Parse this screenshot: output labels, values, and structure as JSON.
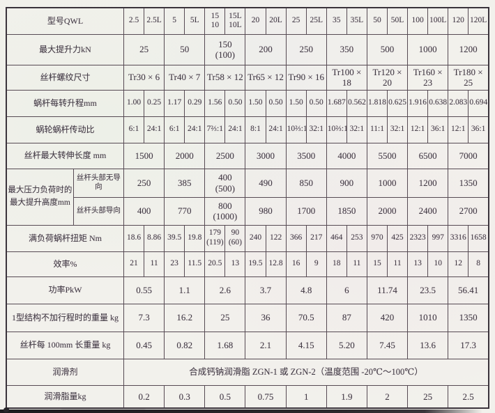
{
  "page": {
    "paper_color": "#f2f1ec",
    "line_color": "#564a53",
    "text_color": "#3f3a42",
    "scanner_bar_color": "#1d1b1e"
  },
  "table": {
    "rows": [
      {
        "id": "model",
        "label": "型号QWL",
        "span": 1,
        "cells": [
          "2.5",
          "2.5L",
          "5",
          "5L",
          "15\n10",
          "15L\n10L",
          "20",
          "20L",
          "25",
          "25L",
          "35",
          "35L",
          "50",
          "50L",
          "100",
          "100L",
          "120",
          "120L"
        ]
      },
      {
        "id": "max_lift_force_kN",
        "label": "最大提升力kN",
        "span": 2,
        "cells": [
          "25",
          "50",
          "150\n(100)",
          "200",
          "250",
          "350",
          "500",
          "1000",
          "1200"
        ]
      },
      {
        "id": "screw_thread_size",
        "label": "丝杆螺纹尺寸",
        "span": 2,
        "cells": [
          "Tr30 × 6",
          "Tr40 × 7",
          "Tr58 × 12",
          "Tr65 × 12",
          "Tr90 × 16",
          "Tr100 × 18",
          "Tr120 × 20",
          "Tr160 × 23",
          "Tr180 × 25"
        ]
      },
      {
        "id": "lift_per_rev_mm",
        "label": "蜗杆每转升程mm",
        "span": 1,
        "cells": [
          "1.00",
          "0.25",
          "1.17",
          "0.29",
          "1.56",
          "0.50",
          "1.50",
          "0.50",
          "1.50",
          "0.50",
          "1.687",
          "0.562",
          "1.818",
          "0.625",
          "1.916",
          "0.638",
          "2.083",
          "0.694"
        ]
      },
      {
        "id": "worm_gear_ratio",
        "label": "蜗轮蜗杆传动比",
        "span": 1,
        "cells": [
          "6:1",
          "24:1",
          "6:1",
          "24:1",
          "7⅔:1",
          "24:1",
          "8:1",
          "24:1",
          "10⅔:1",
          "32:1",
          "10⅔:1",
          "32:1",
          "11:1",
          "32:1",
          "12:1",
          "36:1",
          "12:1",
          "36:1"
        ]
      },
      {
        "id": "max_screw_extension_mm",
        "label": "丝杆最大转伸长度 mm",
        "span": 2,
        "cells": [
          "1500",
          "2000",
          "2500",
          "3000",
          "3500",
          "4000",
          "5500",
          "6500",
          "7000"
        ]
      },
      {
        "id": "max_lift_height_unguided",
        "group_label": "最大压力负荷时的\n最大提升高度mm",
        "label": "丝杆头部无导向",
        "span": 2,
        "cells": [
          "250",
          "385",
          "400\n(500)",
          "490",
          "850",
          "900",
          "1000",
          "1200",
          "1350"
        ]
      },
      {
        "id": "max_lift_height_guided",
        "is_sub": true,
        "label": "丝杆头部导向",
        "span": 2,
        "cells": [
          "400",
          "770",
          "800\n(1000)",
          "980",
          "1700",
          "1850",
          "2000",
          "2400",
          "2700"
        ]
      },
      {
        "id": "full_load_worm_torque_Nm",
        "label": "满负荷蜗杆扭矩 Nm",
        "span": 1,
        "cells": [
          "18.6",
          "8.86",
          "39.5",
          "19.8",
          "179\n(119)",
          "90\n(60)",
          "240",
          "122",
          "366",
          "217",
          "464",
          "253",
          "970",
          "425",
          "2323",
          "997",
          "3316",
          "1658"
        ]
      },
      {
        "id": "efficiency_pct",
        "label": "效率%",
        "span": 1,
        "cells": [
          "21",
          "11",
          "23",
          "11.5",
          "20.5",
          "13",
          "19.5",
          "12.8",
          "16",
          "9",
          "18",
          "11",
          "15",
          "11",
          "13",
          "10",
          "12",
          "8"
        ]
      },
      {
        "id": "power_PkW",
        "label": "功率PkW",
        "span": 2,
        "cells": [
          "0.55",
          "1.1",
          "2.6",
          "3.7",
          "4.8",
          "6",
          "11.74",
          "23.5",
          "56.41"
        ]
      },
      {
        "id": "weight_type1_no_stroke_kg",
        "label": "1型结构不加行程时的重量 kg",
        "span": 2,
        "cells": [
          "7.3",
          "16.2",
          "25",
          "36",
          "70.5",
          "87",
          "420",
          "1010",
          "1350"
        ]
      },
      {
        "id": "screw_weight_per_100mm_kg",
        "label": "丝杆每 100mm 长重量 kg",
        "span": 2,
        "cells": [
          "0.45",
          "0.82",
          "1.68",
          "2.1",
          "4.15",
          "5.20",
          "7.45",
          "13.6",
          "17.3"
        ]
      },
      {
        "id": "lubricant",
        "label": "润滑剂",
        "span": 18,
        "cells": [
          "合成钙钠润滑脂 ZGN-1 或 ZGN-2（温度范围 -20℃～100℃）"
        ]
      },
      {
        "id": "grease_amount_kg",
        "label": "润滑脂量kg",
        "span": 2,
        "cells": [
          "0.2",
          "0.3",
          "0.5",
          "0.75",
          "1",
          "1.9",
          "2",
          "25",
          "2.5"
        ]
      }
    ]
  }
}
